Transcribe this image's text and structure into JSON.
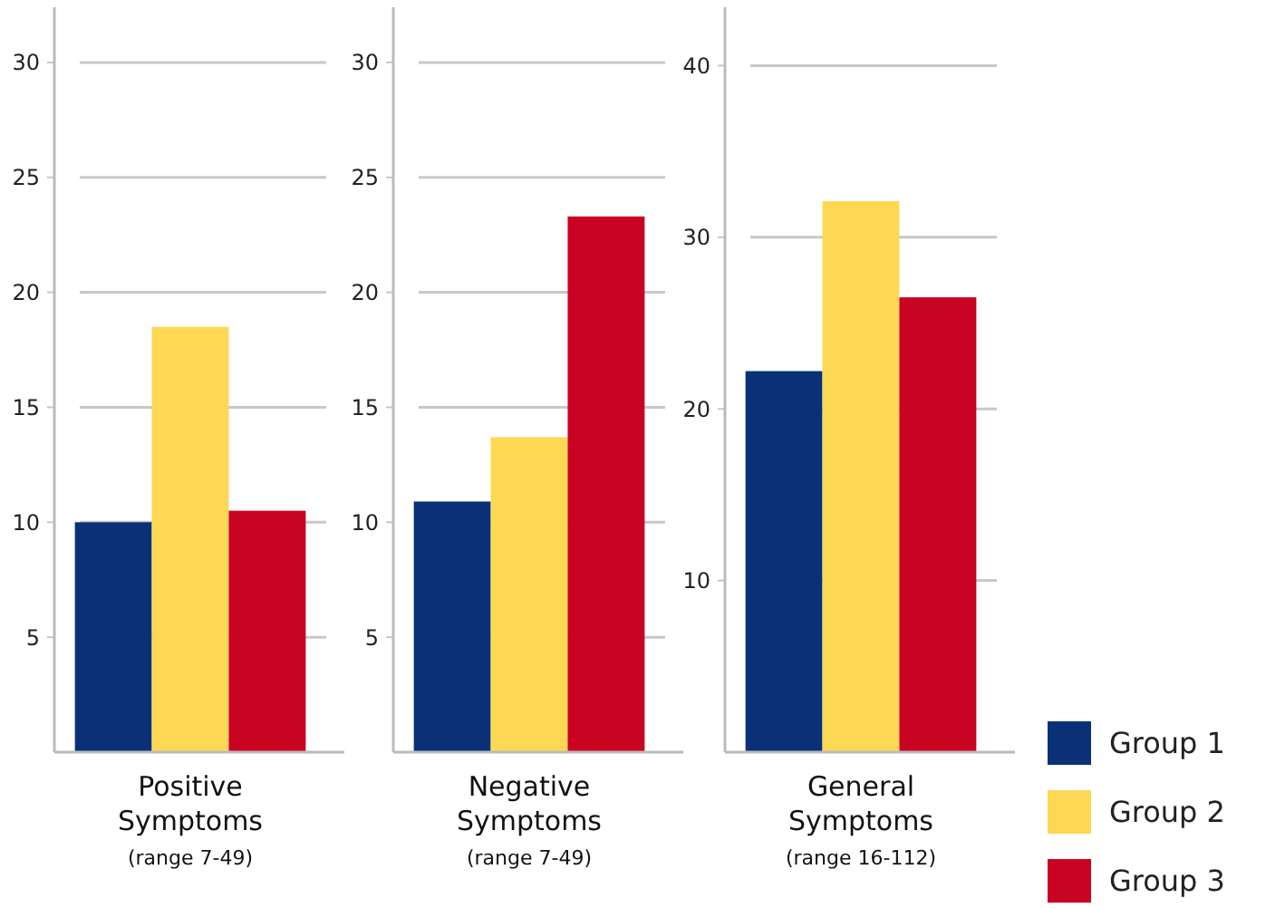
{
  "chart_data": [
    {
      "type": "bar",
      "categories": [
        "Positive Symptoms"
      ],
      "xlabel": "(range 7-49)",
      "ylim": [
        0,
        32.4
      ],
      "yticks": [
        5,
        10,
        15,
        20,
        25,
        30
      ],
      "grid": "y",
      "legend": false,
      "series": [
        {
          "color": "#0a3178",
          "values": [
            10.0
          ]
        },
        {
          "color": "#fdd855",
          "values": [
            18.5
          ]
        },
        {
          "color": "#c90322",
          "values": [
            10.5
          ]
        }
      ]
    },
    {
      "type": "bar",
      "categories": [
        "Negative Symptoms"
      ],
      "xlabel": "(range 7-49)",
      "ylim": [
        0,
        32.4
      ],
      "yticks": [
        5,
        10,
        15,
        20,
        25,
        30
      ],
      "grid": "y",
      "legend": false,
      "series": [
        {
          "color": "#0a3178",
          "values": [
            10.9
          ]
        },
        {
          "color": "#fdd855",
          "values": [
            13.7
          ]
        },
        {
          "color": "#c90322",
          "values": [
            23.3
          ]
        }
      ]
    },
    {
      "type": "bar",
      "categories": [
        "General Symptoms"
      ],
      "xlabel": "(range 16-112)",
      "ylim": [
        0,
        43.4
      ],
      "yticks": [
        10,
        20,
        30,
        40
      ],
      "grid": "y",
      "legend": "bottom right",
      "series": [
        {
          "name": "Group 1",
          "color": "#0a3178",
          "values": [
            22.2
          ]
        },
        {
          "name": "Group 2",
          "color": "#fdd855",
          "values": [
            32.1
          ]
        },
        {
          "name": "Group 3",
          "color": "#c90322",
          "values": [
            26.5
          ]
        }
      ]
    }
  ]
}
